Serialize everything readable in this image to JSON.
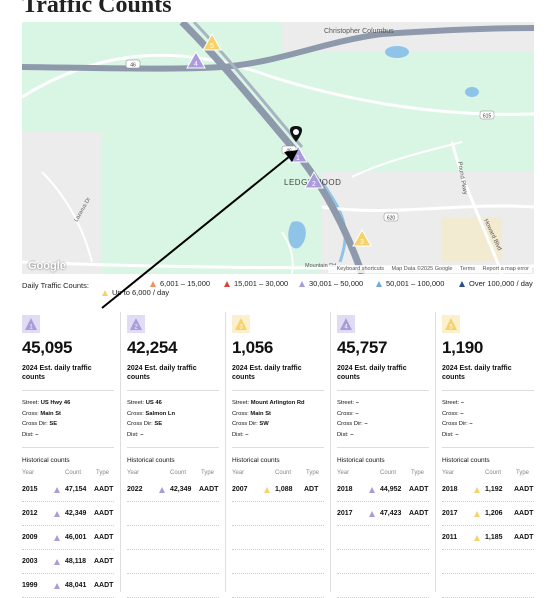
{
  "page": {
    "title": "Traffic Counts"
  },
  "map": {
    "labels": {
      "christopher": "Christopher Columbus",
      "ledgewood": "LEDGEWOOD",
      "mountain": "Mountain Rd",
      "lazarus": "Lazarus Dr",
      "pound": "Pound Pkwy",
      "howard": "Howard Blvd",
      "us46a": "46",
      "us46b": "46",
      "r615": "615",
      "r620": "620"
    },
    "footer": {
      "shortcuts": "Keyboard shortcuts",
      "data": "Map Data ©2025 Google",
      "terms": "Terms",
      "report": "Report a map error"
    },
    "google": "Google",
    "markers": [
      "1",
      "2",
      "3",
      "4",
      "5"
    ]
  },
  "legend": {
    "label": "Daily Traffic Counts:",
    "items": [
      {
        "text": "Up to 6,000 / day",
        "color": "#f5d26a"
      },
      {
        "text": "6,001 – 15,000",
        "color": "#f2935a"
      },
      {
        "text": "15,001 – 30,000",
        "color": "#d9433a"
      },
      {
        "text": "30,001 – 50,000",
        "color": "#a99bdc"
      },
      {
        "text": "50,001 – 100,000",
        "color": "#6fa8dc"
      },
      {
        "text": "Over 100,000 / day",
        "color": "#2b4f8c"
      }
    ]
  },
  "cards": [
    {
      "num": "1",
      "color": "#a99bdc",
      "count": "45,095",
      "sub": "2024 Est. daily traffic counts",
      "street_l": "Street:",
      "street": "US Hwy 46",
      "cross_l": "Cross:",
      "cross": "Main St",
      "dir_l": "Cross Dir:",
      "dir": "SE",
      "dist_l": "Dist:",
      "dist": "–",
      "hist_title": "Historical counts",
      "h_year": "Year",
      "h_count": "Count",
      "h_type": "Type",
      "rows": [
        {
          "year": "2015",
          "count": "47,154",
          "type": "AADT",
          "color": "#a99bdc"
        },
        {
          "year": "2012",
          "count": "42,349",
          "type": "AADT",
          "color": "#a99bdc"
        },
        {
          "year": "2009",
          "count": "46,001",
          "type": "AADT",
          "color": "#a99bdc"
        },
        {
          "year": "2003",
          "count": "48,118",
          "type": "AADT",
          "color": "#a99bdc"
        },
        {
          "year": "1999",
          "count": "48,041",
          "type": "AADT",
          "color": "#a99bdc"
        }
      ]
    },
    {
      "num": "2",
      "color": "#a99bdc",
      "count": "42,254",
      "sub": "2024 Est. daily traffic counts",
      "street_l": "Street:",
      "street": "US 46",
      "cross_l": "Cross:",
      "cross": "Salmon Ln",
      "dir_l": "Cross Dir:",
      "dir": "SE",
      "dist_l": "Dist:",
      "dist": "–",
      "hist_title": "Historical counts",
      "h_year": "Year",
      "h_count": "Count",
      "h_type": "Type",
      "rows": [
        {
          "year": "2022",
          "count": "42,349",
          "type": "AADT",
          "color": "#a99bdc"
        }
      ]
    },
    {
      "num": "3",
      "color": "#f5d26a",
      "count": "1,056",
      "sub": "2024 Est. daily traffic counts",
      "street_l": "Street:",
      "street": "Mount Arlington Rd",
      "cross_l": "Cross:",
      "cross": "Main St",
      "dir_l": "Cross Dir:",
      "dir": "SW",
      "dist_l": "Dist:",
      "dist": "–",
      "hist_title": "Historical counts",
      "h_year": "Year",
      "h_count": "Count",
      "h_type": "Type",
      "rows": [
        {
          "year": "2007",
          "count": "1,088",
          "type": "ADT",
          "color": "#f5d26a"
        }
      ]
    },
    {
      "num": "4",
      "color": "#a99bdc",
      "count": "45,757",
      "sub": "2024 Est. daily traffic counts",
      "street_l": "Street:",
      "street": "–",
      "cross_l": "Cross:",
      "cross": "–",
      "dir_l": "Cross Dir:",
      "dir": "–",
      "dist_l": "Dist:",
      "dist": "–",
      "hist_title": "Historical counts",
      "h_year": "Year",
      "h_count": "Count",
      "h_type": "Type",
      "rows": [
        {
          "year": "2018",
          "count": "44,952",
          "type": "AADT",
          "color": "#a99bdc"
        },
        {
          "year": "2017",
          "count": "47,423",
          "type": "AADT",
          "color": "#a99bdc"
        }
      ]
    },
    {
      "num": "5",
      "color": "#f5d26a",
      "count": "1,190",
      "sub": "2024 Est. daily traffic counts",
      "street_l": "Street:",
      "street": "–",
      "cross_l": "Cross:",
      "cross": "–",
      "dir_l": "Cross Dir:",
      "dir": "–",
      "dist_l": "Dist:",
      "dist": "–",
      "hist_title": "Historical counts",
      "h_year": "Year",
      "h_count": "Count",
      "h_type": "Type",
      "rows": [
        {
          "year": "2018",
          "count": "1,192",
          "type": "AADT",
          "color": "#f5d26a"
        },
        {
          "year": "2017",
          "count": "1,206",
          "type": "AADT",
          "color": "#f5d26a"
        },
        {
          "year": "2011",
          "count": "1,185",
          "type": "AADT",
          "color": "#f5d26a"
        }
      ]
    }
  ]
}
